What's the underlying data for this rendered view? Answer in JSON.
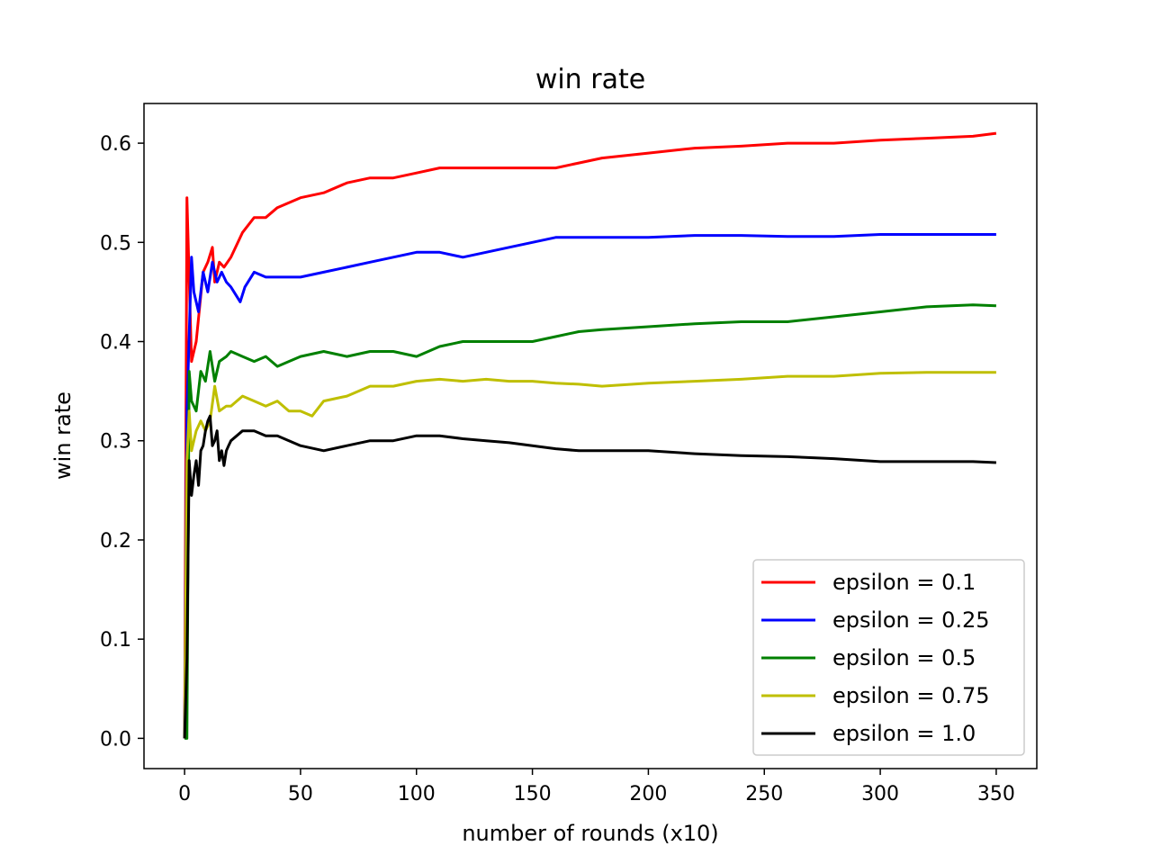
{
  "chart_data": {
    "type": "line",
    "title": "win rate",
    "xlabel": "number of rounds (x10)",
    "ylabel": "win rate",
    "xlim": [
      -17.5,
      367.5
    ],
    "ylim": [
      -0.0305,
      0.64
    ],
    "xticks": [
      0,
      50,
      100,
      150,
      200,
      250,
      300,
      350
    ],
    "yticks": [
      0.0,
      0.1,
      0.2,
      0.3,
      0.4,
      0.5,
      0.6
    ],
    "xtick_labels": [
      "0",
      "50",
      "100",
      "150",
      "200",
      "250",
      "300",
      "350"
    ],
    "ytick_labels": [
      "0.0",
      "0.1",
      "0.2",
      "0.3",
      "0.4",
      "0.5",
      "0.6"
    ],
    "grid": false,
    "legend_position": "lower-right",
    "series": [
      {
        "name": "epsilon = 0.1",
        "color": "#ff0000",
        "x": [
          0,
          1,
          3,
          5,
          8,
          10,
          12,
          13,
          15,
          17,
          20,
          25,
          30,
          35,
          40,
          50,
          60,
          70,
          80,
          90,
          100,
          110,
          120,
          130,
          140,
          150,
          160,
          170,
          180,
          200,
          220,
          240,
          260,
          280,
          300,
          320,
          340,
          350
        ],
        "y": [
          0.0,
          0.545,
          0.38,
          0.4,
          0.47,
          0.48,
          0.495,
          0.46,
          0.48,
          0.475,
          0.485,
          0.51,
          0.525,
          0.525,
          0.535,
          0.545,
          0.55,
          0.56,
          0.565,
          0.565,
          0.57,
          0.575,
          0.575,
          0.575,
          0.575,
          0.575,
          0.575,
          0.58,
          0.585,
          0.59,
          0.595,
          0.597,
          0.6,
          0.6,
          0.603,
          0.605,
          0.607,
          0.61
        ]
      },
      {
        "name": "epsilon = 0.25",
        "color": "#0000ff",
        "x": [
          0,
          1,
          3,
          4,
          6,
          8,
          10,
          12,
          14,
          16,
          18,
          20,
          24,
          26,
          30,
          35,
          40,
          50,
          60,
          70,
          80,
          90,
          100,
          110,
          120,
          130,
          140,
          150,
          160,
          170,
          180,
          200,
          220,
          240,
          260,
          280,
          300,
          320,
          340,
          350
        ],
        "y": [
          0.0,
          0.33,
          0.485,
          0.45,
          0.43,
          0.47,
          0.45,
          0.48,
          0.46,
          0.47,
          0.46,
          0.455,
          0.44,
          0.455,
          0.47,
          0.465,
          0.465,
          0.465,
          0.47,
          0.475,
          0.48,
          0.485,
          0.49,
          0.49,
          0.485,
          0.49,
          0.495,
          0.5,
          0.505,
          0.505,
          0.505,
          0.505,
          0.507,
          0.507,
          0.506,
          0.506,
          0.508,
          0.508,
          0.508,
          0.508
        ]
      },
      {
        "name": "epsilon = 0.5",
        "color": "#008000",
        "x": [
          0,
          1,
          2,
          3,
          5,
          7,
          9,
          11,
          13,
          15,
          18,
          20,
          25,
          30,
          35,
          40,
          45,
          50,
          60,
          70,
          80,
          90,
          100,
          110,
          120,
          130,
          140,
          150,
          160,
          170,
          180,
          200,
          220,
          240,
          260,
          280,
          300,
          320,
          340,
          350
        ],
        "y": [
          0.0,
          0.0,
          0.37,
          0.34,
          0.33,
          0.37,
          0.36,
          0.39,
          0.36,
          0.38,
          0.385,
          0.39,
          0.385,
          0.38,
          0.385,
          0.375,
          0.38,
          0.385,
          0.39,
          0.385,
          0.39,
          0.39,
          0.385,
          0.395,
          0.4,
          0.4,
          0.4,
          0.4,
          0.405,
          0.41,
          0.412,
          0.415,
          0.418,
          0.42,
          0.42,
          0.425,
          0.43,
          0.435,
          0.437,
          0.436
        ]
      },
      {
        "name": "epsilon = 0.75",
        "color": "#bfbf00",
        "x": [
          0,
          1,
          2,
          3,
          5,
          7,
          9,
          11,
          13,
          15,
          18,
          20,
          25,
          30,
          35,
          40,
          45,
          50,
          55,
          60,
          70,
          80,
          90,
          100,
          110,
          120,
          130,
          140,
          150,
          160,
          170,
          180,
          200,
          220,
          240,
          260,
          280,
          300,
          320,
          340,
          350
        ],
        "y": [
          0.0,
          0.28,
          0.33,
          0.29,
          0.31,
          0.32,
          0.31,
          0.32,
          0.355,
          0.33,
          0.335,
          0.335,
          0.345,
          0.34,
          0.335,
          0.34,
          0.33,
          0.33,
          0.325,
          0.34,
          0.345,
          0.355,
          0.355,
          0.36,
          0.362,
          0.36,
          0.362,
          0.36,
          0.36,
          0.358,
          0.357,
          0.355,
          0.358,
          0.36,
          0.362,
          0.365,
          0.365,
          0.368,
          0.369,
          0.369,
          0.369
        ]
      },
      {
        "name": "epsilon = 1.0",
        "color": "#000000",
        "x": [
          0,
          1,
          2,
          3,
          4,
          5,
          6,
          7,
          8,
          9,
          10,
          11,
          12,
          13,
          14,
          15,
          16,
          17,
          18,
          19,
          20,
          25,
          30,
          35,
          40,
          50,
          60,
          70,
          80,
          90,
          100,
          110,
          120,
          130,
          140,
          150,
          160,
          170,
          180,
          200,
          220,
          240,
          260,
          280,
          300,
          320,
          340,
          350
        ],
        "y": [
          0.0,
          0.08,
          0.28,
          0.245,
          0.265,
          0.28,
          0.255,
          0.29,
          0.295,
          0.31,
          0.32,
          0.325,
          0.295,
          0.3,
          0.31,
          0.28,
          0.29,
          0.275,
          0.29,
          0.295,
          0.3,
          0.31,
          0.31,
          0.305,
          0.305,
          0.295,
          0.29,
          0.295,
          0.3,
          0.3,
          0.305,
          0.305,
          0.302,
          0.3,
          0.298,
          0.295,
          0.292,
          0.29,
          0.29,
          0.29,
          0.287,
          0.285,
          0.284,
          0.282,
          0.279,
          0.279,
          0.279,
          0.278
        ]
      }
    ]
  }
}
